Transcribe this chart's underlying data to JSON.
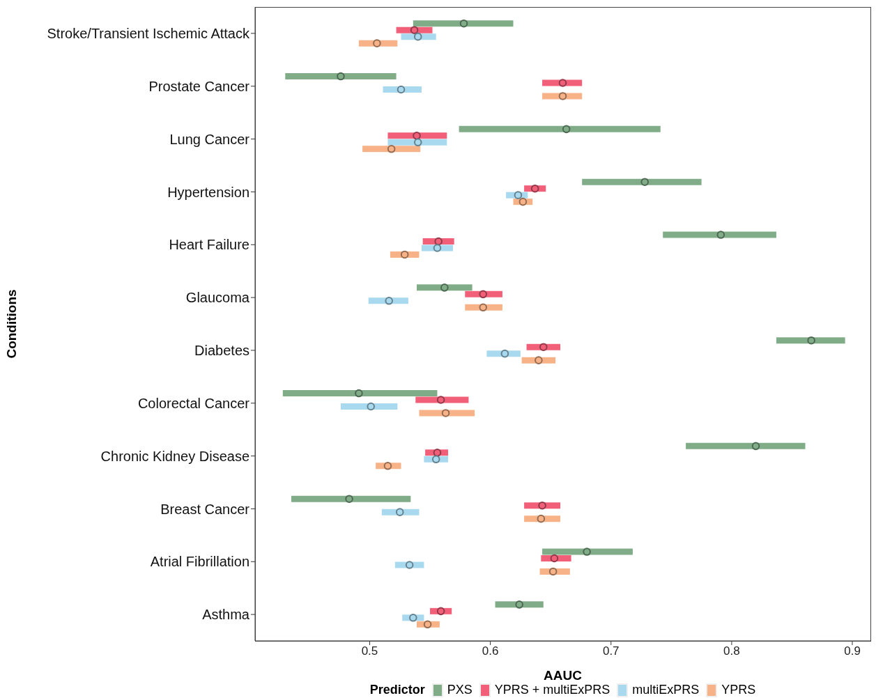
{
  "chart_data": {
    "type": "scatter",
    "orientation": "horizontal",
    "xlabel": "AAUC",
    "ylabel": "Conditions",
    "legend_title": "Predictor",
    "legend": "bottom",
    "grid": false,
    "marker": "circle",
    "categories": [
      "Stroke/Transient Ischemic Attack",
      "Prostate Cancer",
      "Lung Cancer",
      "Hypertension",
      "Heart Failure",
      "Glaucoma",
      "Diabetes",
      "Colorectal Cancer",
      "Chronic Kidney Disease",
      "Breast Cancer",
      "Atrial Fibrillation",
      "Asthma"
    ],
    "xlim": [
      0.405,
      0.915
    ],
    "xticks": [
      0.5,
      0.6,
      0.7,
      0.8,
      0.9
    ],
    "series": [
      {
        "name": "PXS",
        "color": "#80ad88",
        "values": [
          0.578,
          0.476,
          0.663,
          0.728,
          0.791,
          0.562,
          0.866,
          0.491,
          0.82,
          0.483,
          0.68,
          0.624
        ],
        "errors": [
          [
            0.536,
            0.619
          ],
          [
            0.43,
            0.522
          ],
          [
            0.574,
            0.741
          ],
          [
            0.676,
            0.775
          ],
          [
            0.743,
            0.837
          ],
          [
            0.539,
            0.585
          ],
          [
            0.837,
            0.894
          ],
          [
            0.428,
            0.556
          ],
          [
            0.762,
            0.861
          ],
          [
            0.435,
            0.534
          ],
          [
            0.643,
            0.718
          ],
          [
            0.604,
            0.644
          ]
        ]
      },
      {
        "name": "YPRS + multiExPRS",
        "color": "#f25f79",
        "values": [
          0.537,
          0.66,
          0.539,
          0.637,
          0.557,
          0.594,
          0.644,
          0.559,
          0.556,
          0.643,
          0.653,
          0.559
        ],
        "errors": [
          [
            0.522,
            0.552
          ],
          [
            0.643,
            0.676
          ],
          [
            0.515,
            0.564
          ],
          [
            0.628,
            0.646
          ],
          [
            0.544,
            0.57
          ],
          [
            0.579,
            0.61
          ],
          [
            0.63,
            0.658
          ],
          [
            0.538,
            0.582
          ],
          [
            0.546,
            0.565
          ],
          [
            0.628,
            0.658
          ],
          [
            0.642,
            0.667
          ],
          [
            0.55,
            0.568
          ]
        ]
      },
      {
        "name": "multiExPRS",
        "color": "#a8d9ef",
        "values": [
          0.54,
          0.526,
          0.54,
          0.623,
          0.556,
          0.516,
          0.612,
          0.501,
          0.555,
          0.525,
          0.533,
          0.536
        ],
        "errors": [
          [
            0.526,
            0.555
          ],
          [
            0.511,
            0.543
          ],
          [
            0.515,
            0.564
          ],
          [
            0.613,
            0.631
          ],
          [
            0.543,
            0.569
          ],
          [
            0.499,
            0.532
          ],
          [
            0.597,
            0.625
          ],
          [
            0.476,
            0.523
          ],
          [
            0.545,
            0.565
          ],
          [
            0.51,
            0.541
          ],
          [
            0.521,
            0.545
          ],
          [
            0.527,
            0.545
          ]
        ]
      },
      {
        "name": "YPRS",
        "color": "#f8b287",
        "values": [
          0.506,
          0.66,
          0.518,
          0.627,
          0.529,
          0.594,
          0.64,
          0.563,
          0.515,
          0.642,
          0.652,
          0.548
        ],
        "errors": [
          [
            0.491,
            0.523
          ],
          [
            0.643,
            0.676
          ],
          [
            0.494,
            0.542
          ],
          [
            0.619,
            0.635
          ],
          [
            0.517,
            0.541
          ],
          [
            0.579,
            0.61
          ],
          [
            0.626,
            0.654
          ],
          [
            0.541,
            0.587
          ],
          [
            0.505,
            0.526
          ],
          [
            0.628,
            0.658
          ],
          [
            0.641,
            0.666
          ],
          [
            0.539,
            0.558
          ]
        ]
      }
    ]
  }
}
